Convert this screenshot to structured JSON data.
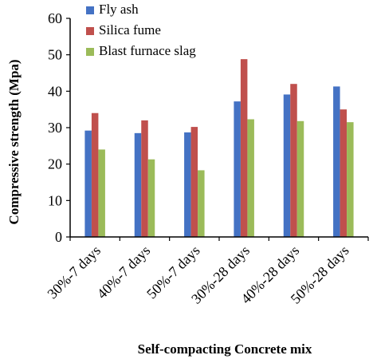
{
  "chart_data": {
    "type": "bar",
    "categories": [
      "30%-7 days",
      "40%-7 days",
      "50%-7 days",
      "30%-28 days",
      "40%-28 days",
      "50%-28 days"
    ],
    "series": [
      {
        "name": "Fly ash",
        "color": "#4472C4",
        "values": [
          29.2,
          28.5,
          28.7,
          37.2,
          39.1,
          41.3
        ]
      },
      {
        "name": "Silica fume",
        "color": "#C0504D",
        "values": [
          34.0,
          32.0,
          30.2,
          48.8,
          42.0,
          35.0
        ]
      },
      {
        "name": "Blast furnace slag",
        "color": "#9BBB59",
        "values": [
          24.0,
          21.3,
          18.3,
          32.3,
          31.8,
          31.5
        ]
      }
    ],
    "xlabel": "Self-compacting Concrete mix",
    "ylabel": "Compressive strength (Mpa)",
    "ylim": [
      0,
      60
    ],
    "yticks": [
      0,
      10,
      20,
      30,
      40,
      50,
      60
    ],
    "grid": false,
    "legend_position": "top-left"
  }
}
